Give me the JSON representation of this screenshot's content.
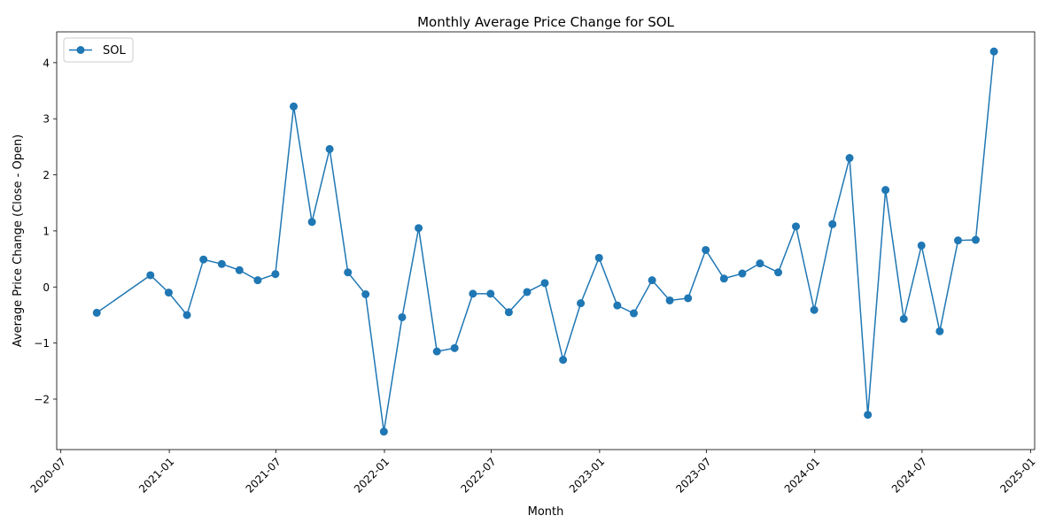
{
  "chart_data": {
    "type": "line",
    "title": "Monthly Average Price Change for SOL",
    "xlabel": "Month",
    "ylabel": "Average Price Change (Close - Open)",
    "x_ticks": [
      "2020-07",
      "2021-01",
      "2021-07",
      "2022-01",
      "2022-07",
      "2023-01",
      "2023-07",
      "2024-01",
      "2024-07",
      "2025-01"
    ],
    "y_ticks": [
      "−2",
      "−1",
      "0",
      "1",
      "2",
      "3",
      "4"
    ],
    "xlim": [
      "2020-06-24",
      "2025-01-08"
    ],
    "ylim": [
      -2.9,
      4.55
    ],
    "legend_position": "top-left",
    "grid": false,
    "color": "#1f77b4",
    "series": [
      {
        "name": "SOL",
        "points": [
          {
            "x": "2020-08-31",
            "y": -0.46
          },
          {
            "x": "2020-11-30",
            "y": 0.21
          },
          {
            "x": "2020-12-31",
            "y": -0.1
          },
          {
            "x": "2021-01-31",
            "y": -0.5
          },
          {
            "x": "2021-02-28",
            "y": 0.49
          },
          {
            "x": "2021-03-31",
            "y": 0.41
          },
          {
            "x": "2021-04-30",
            "y": 0.3
          },
          {
            "x": "2021-05-31",
            "y": 0.12
          },
          {
            "x": "2021-06-30",
            "y": 0.23
          },
          {
            "x": "2021-07-31",
            "y": 3.22
          },
          {
            "x": "2021-08-31",
            "y": 1.16
          },
          {
            "x": "2021-09-30",
            "y": 2.46
          },
          {
            "x": "2021-10-31",
            "y": 0.26
          },
          {
            "x": "2021-11-30",
            "y": -0.13
          },
          {
            "x": "2021-12-31",
            "y": -2.58
          },
          {
            "x": "2022-01-31",
            "y": -0.54
          },
          {
            "x": "2022-02-28",
            "y": 1.05
          },
          {
            "x": "2022-03-31",
            "y": -1.15
          },
          {
            "x": "2022-04-30",
            "y": -1.09
          },
          {
            "x": "2022-05-31",
            "y": -0.12
          },
          {
            "x": "2022-06-30",
            "y": -0.12
          },
          {
            "x": "2022-07-31",
            "y": -0.45
          },
          {
            "x": "2022-08-31",
            "y": -0.09
          },
          {
            "x": "2022-09-30",
            "y": 0.07
          },
          {
            "x": "2022-10-31",
            "y": -1.3
          },
          {
            "x": "2022-11-30",
            "y": -0.29
          },
          {
            "x": "2022-12-31",
            "y": 0.52
          },
          {
            "x": "2023-01-31",
            "y": -0.33
          },
          {
            "x": "2023-02-28",
            "y": -0.47
          },
          {
            "x": "2023-03-31",
            "y": 0.12
          },
          {
            "x": "2023-04-30",
            "y": -0.24
          },
          {
            "x": "2023-05-31",
            "y": -0.2
          },
          {
            "x": "2023-06-30",
            "y": 0.66
          },
          {
            "x": "2023-07-31",
            "y": 0.15
          },
          {
            "x": "2023-08-31",
            "y": 0.24
          },
          {
            "x": "2023-09-30",
            "y": 0.42
          },
          {
            "x": "2023-10-31",
            "y": 0.26
          },
          {
            "x": "2023-11-30",
            "y": 1.08
          },
          {
            "x": "2023-12-31",
            "y": -0.41
          },
          {
            "x": "2024-01-31",
            "y": 1.12
          },
          {
            "x": "2024-02-29",
            "y": 2.3
          },
          {
            "x": "2024-03-31",
            "y": -2.28
          },
          {
            "x": "2024-04-30",
            "y": 1.73
          },
          {
            "x": "2024-05-31",
            "y": -0.57
          },
          {
            "x": "2024-06-30",
            "y": 0.74
          },
          {
            "x": "2024-07-31",
            "y": -0.79
          },
          {
            "x": "2024-08-31",
            "y": 0.83
          },
          {
            "x": "2024-09-30",
            "y": 0.84
          },
          {
            "x": "2024-10-31",
            "y": 4.2
          }
        ]
      }
    ]
  }
}
